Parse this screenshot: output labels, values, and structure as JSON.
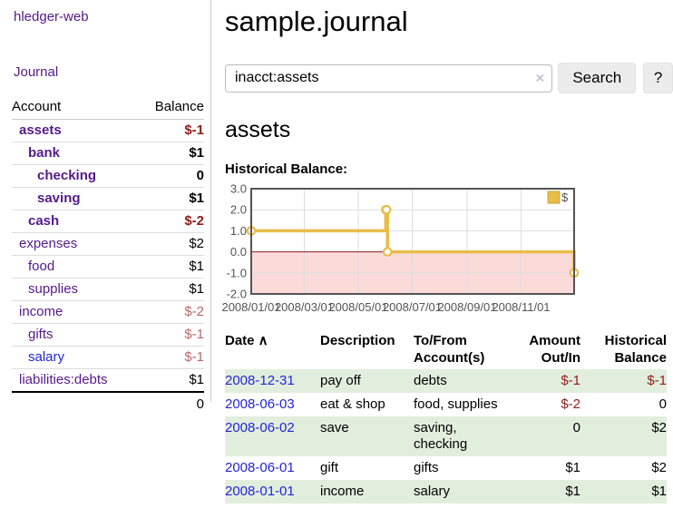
{
  "sidebar": {
    "brand": "hledger-web",
    "journal_link": "Journal",
    "account_header": "Account",
    "balance_header": "Balance",
    "accounts": [
      {
        "name": "assets",
        "balance": "$-1",
        "indent": 1,
        "bold": true,
        "balance_style": "negative"
      },
      {
        "name": "bank",
        "balance": "$1",
        "indent": 2,
        "bold": true,
        "balance_style": "normal"
      },
      {
        "name": "checking",
        "balance": "0",
        "indent": 3,
        "bold": true,
        "balance_style": "normal"
      },
      {
        "name": "saving",
        "balance": "$1",
        "indent": 3,
        "bold": true,
        "balance_style": "normal"
      },
      {
        "name": "cash",
        "balance": "$-2",
        "indent": 2,
        "bold": true,
        "balance_style": "negative"
      },
      {
        "name": "expenses",
        "balance": "$2",
        "indent": 1,
        "bold": false,
        "balance_style": "normal"
      },
      {
        "name": "food",
        "balance": "$1",
        "indent": 2,
        "bold": false,
        "balance_style": "normal"
      },
      {
        "name": "supplies",
        "balance": "$1",
        "indent": 2,
        "bold": false,
        "balance_style": "normal"
      },
      {
        "name": "income",
        "balance": "$-2",
        "indent": 1,
        "bold": false,
        "balance_style": "negative-muted"
      },
      {
        "name": "gifts",
        "balance": "$-1",
        "indent": 2,
        "bold": false,
        "balance_style": "negative-muted"
      },
      {
        "name": "salary",
        "balance": "$-1",
        "indent": 2,
        "bold": false,
        "balance_style": "negative-muted",
        "link_style": "blue"
      },
      {
        "name": "liabilities:debts",
        "balance": "$1",
        "indent": 1,
        "bold": false,
        "balance_style": "normal"
      }
    ],
    "total": "0"
  },
  "main": {
    "title": "sample.journal",
    "search": {
      "value": "inacct:assets",
      "clear_icon": "×",
      "search_button": "Search",
      "help_button": "?"
    },
    "account_heading": "assets",
    "chart_title": "Historical Balance:"
  },
  "chart_data": {
    "type": "line",
    "line_style": "step",
    "title": "Historical Balance",
    "x": [
      "2008-01-01",
      "2008-06-01",
      "2008-06-02",
      "2008-06-03",
      "2008-12-31"
    ],
    "series": [
      {
        "name": "$",
        "color": "#e8bd4a",
        "values": [
          1,
          2,
          2,
          0,
          -1
        ]
      }
    ],
    "xlim": [
      "2008-01-01",
      "2008-12-31"
    ],
    "ylim": [
      -2,
      3
    ],
    "x_tick_labels": [
      "2008/01/01",
      "2008/03/01",
      "2008/05/01",
      "2008/07/01",
      "2008/09/01",
      "2008/11/01"
    ],
    "y_tick_values": [
      3,
      2,
      1,
      0,
      -1,
      -2
    ],
    "y_tick_labels": [
      "3.0",
      "2.0",
      "1.0",
      "0.0",
      "-1.0",
      "-2.0"
    ],
    "grid": true,
    "legend": {
      "position": "top-right",
      "label": "$",
      "swatch_color": "#e8bd4a",
      "swatch_border": "#c9a238"
    },
    "negative_region_color": "#fbdada",
    "zero_line_color": "#8e1a1a",
    "marker_fill": "#ffffff"
  },
  "register_table": {
    "sort_icon": "∧",
    "headers": [
      {
        "label": "Date",
        "align": "left",
        "sorted": "asc"
      },
      {
        "label": "Description",
        "align": "left"
      },
      {
        "label": "To/From Account(s)",
        "align": "left"
      },
      {
        "label": "Amount Out/In",
        "align": "right"
      },
      {
        "label": "Historical Balance",
        "align": "right"
      }
    ],
    "rows": [
      {
        "date": "2008-12-31",
        "description": "pay off",
        "accounts": "debts",
        "amount": "$-1",
        "amount_negative": true,
        "balance": "$-1",
        "balance_negative": true
      },
      {
        "date": "2008-06-03",
        "description": "eat & shop",
        "accounts": "food, supplies",
        "amount": "$-2",
        "amount_negative": true,
        "balance": "0",
        "balance_negative": false
      },
      {
        "date": "2008-06-02",
        "description": "save",
        "accounts": "saving, checking",
        "amount": "0",
        "amount_negative": false,
        "balance": "$2",
        "balance_negative": false
      },
      {
        "date": "2008-06-01",
        "description": "gift",
        "accounts": "gifts",
        "amount": "$1",
        "amount_negative": false,
        "balance": "$2",
        "balance_negative": false
      },
      {
        "date": "2008-01-01",
        "description": "income",
        "accounts": "salary",
        "amount": "$1",
        "amount_negative": false,
        "balance": "$1",
        "balance_negative": false
      }
    ]
  },
  "colors": {
    "link_purple": "#551a8b",
    "link_blue": "#2424d6",
    "negative": "#8f1d1d",
    "negative_muted": "#b86a6a",
    "row_stripe_green": "#e2eedd",
    "chart_line": "#e8bd4a"
  }
}
